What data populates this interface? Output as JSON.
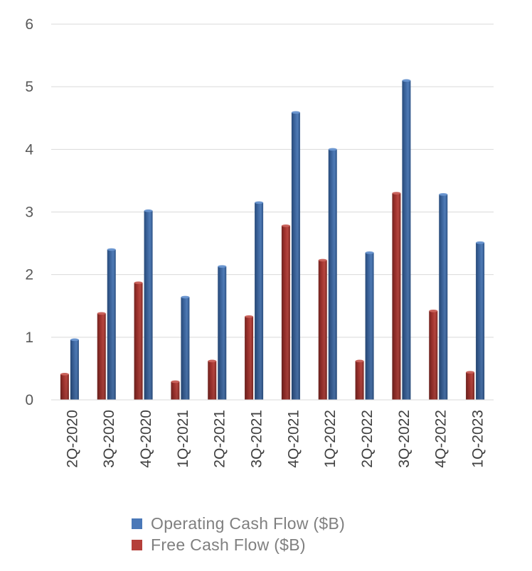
{
  "chart_data": {
    "type": "bar",
    "title": "",
    "xlabel": "",
    "ylabel": "",
    "ylim": [
      0,
      6
    ],
    "yticks": [
      0,
      1,
      2,
      3,
      4,
      5,
      6
    ],
    "grid": true,
    "legend_position": "bottom",
    "categories": [
      "2Q-2020",
      "3Q-2020",
      "4Q-2020",
      "1Q-2021",
      "2Q-2021",
      "3Q-2021",
      "4Q-2021",
      "1Q-2022",
      "2Q-2022",
      "3Q-2022",
      "4Q-2022",
      "1Q-2023"
    ],
    "series": [
      {
        "name": "Free Cash Flow ($B)",
        "color": "#b5403a",
        "values": [
          0.41,
          1.38,
          1.87,
          0.29,
          0.62,
          1.33,
          2.78,
          2.23,
          0.62,
          3.3,
          1.42,
          0.44
        ]
      },
      {
        "name": "Operating Cash Flow ($B)",
        "color": "#4a78b8",
        "values": [
          0.96,
          2.4,
          3.02,
          1.64,
          2.13,
          3.15,
          4.59,
          4.0,
          2.35,
          5.1,
          3.28,
          2.51
        ]
      }
    ]
  },
  "legend": [
    {
      "label": "Operating Cash Flow ($B)",
      "color": "#4a78b8"
    },
    {
      "label": "Free Cash Flow ($B)",
      "color": "#b5403a"
    }
  ]
}
